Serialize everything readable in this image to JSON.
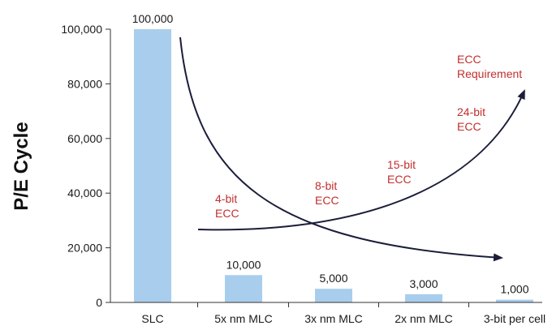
{
  "chart_data": {
    "type": "bar",
    "ylabel": "P/E Cycle",
    "ylim": [
      0,
      100000
    ],
    "yticks": [
      "0",
      "20,000",
      "40,000",
      "60,000",
      "80,000",
      "100,000"
    ],
    "ytick_values": [
      0,
      20000,
      40000,
      60000,
      80000,
      100000
    ],
    "categories": [
      "SLC",
      "5x nm MLC",
      "3x nm MLC",
      "2x nm MLC",
      "3-bit per cell"
    ],
    "values": [
      100000,
      10000,
      5000,
      3000,
      1000
    ],
    "data_labels": [
      "100,000",
      "10,000",
      "5,000",
      "3,000",
      "1,000"
    ],
    "bar_color": "#a9cdec",
    "annotation_color": "#c0302e",
    "curve_color": "#1b1d3a",
    "annotations": [
      {
        "lines": [
          "4-bit",
          "ECC"
        ]
      },
      {
        "lines": [
          "8-bit",
          "ECC"
        ]
      },
      {
        "lines": [
          "15-bit",
          "ECC"
        ]
      },
      {
        "lines": [
          "24-bit",
          "ECC"
        ]
      },
      {
        "lines": [
          "ECC",
          "Requirement"
        ]
      }
    ],
    "grid": false,
    "legend": "none"
  }
}
